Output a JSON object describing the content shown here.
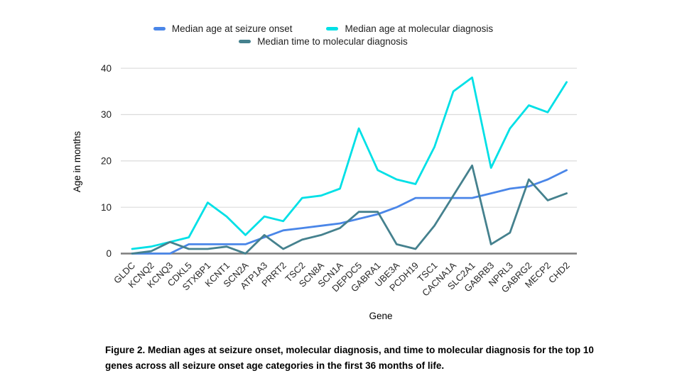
{
  "legend": [
    {
      "label": "Median age at seizure onset",
      "color": "#4a86e8"
    },
    {
      "label": "Median age at molecular diagnosis",
      "color": "#00e0e6"
    },
    {
      "label": "Median time to molecular diagnosis",
      "color": "#45818e"
    }
  ],
  "axes": {
    "y_label": "Age in months",
    "x_label": "Gene",
    "y_ticks": [
      0,
      10,
      20,
      30,
      40
    ]
  },
  "caption": {
    "line1": "Figure 2. Median ages at seizure onset, molecular diagnosis, and time to molecular diagnosis for the top 10",
    "line2": "genes across all seizure onset age categories in the first 36 months of life."
  },
  "chart_data": {
    "type": "line",
    "title": "",
    "xlabel": "Gene",
    "ylabel": "Age in months",
    "ylim": [
      0,
      40
    ],
    "grid": true,
    "legend_position": "top",
    "categories": [
      "GLDC",
      "KCNQ2",
      "KCNQ3",
      "CDKL5",
      "STXBP1",
      "KCNT1",
      "SCN2A",
      "ATP1A3",
      "PRRT2",
      "TSC2",
      "SCN8A",
      "SCN1A",
      "DEPDC5",
      "GABRA1",
      "UBE3A",
      "PCDH19",
      "TSC1",
      "CACNA1A",
      "SLC2A1",
      "GABRB3",
      "NPRL3",
      "GABRG2",
      "MECP2",
      "CHD2"
    ],
    "series": [
      {
        "name": "Median age at seizure onset",
        "color": "#4a86e8",
        "values": [
          0,
          0,
          0,
          2,
          2,
          2,
          2,
          3.5,
          5,
          5.5,
          6,
          6.5,
          7.5,
          8.5,
          10,
          12,
          12,
          12,
          12,
          13,
          14,
          14.5,
          16,
          18
        ]
      },
      {
        "name": "Median age at molecular diagnosis",
        "color": "#00e0e6",
        "values": [
          1,
          1.5,
          2.5,
          3.5,
          11,
          8,
          4,
          8,
          7,
          12,
          12.5,
          14,
          27,
          18,
          16,
          15,
          23,
          35,
          38,
          18.5,
          27,
          32,
          30.5,
          37
        ]
      },
      {
        "name": "Median time to molecular diagnosis",
        "color": "#45818e",
        "values": [
          0,
          0.5,
          2.5,
          1,
          1,
          1.5,
          0,
          4,
          1,
          3,
          4,
          5.5,
          9,
          9,
          2,
          1,
          6,
          12.5,
          19,
          2,
          4.5,
          16,
          11.5,
          13
        ]
      }
    ]
  }
}
